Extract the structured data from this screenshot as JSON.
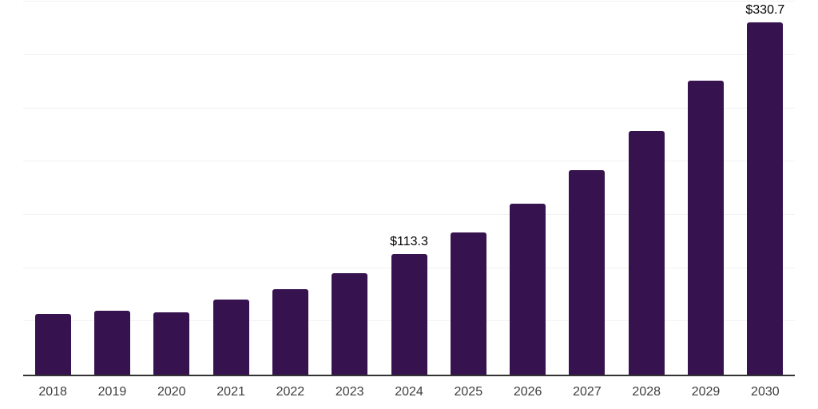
{
  "chart": {
    "background_color": "#ffffff",
    "bar_color": "#36124e",
    "gridline_color": "#f2f2f2",
    "axis_line_color": "#333333",
    "x_label_color": "#3d3d3d",
    "data_label_color": "#000000"
  },
  "chart_data": {
    "type": "bar",
    "title": "",
    "xlabel": "",
    "ylabel": "",
    "categories": [
      "2018",
      "2019",
      "2020",
      "2021",
      "2022",
      "2023",
      "2024",
      "2025",
      "2026",
      "2027",
      "2028",
      "2029",
      "2030"
    ],
    "values": [
      56.8,
      59.8,
      58.7,
      70.7,
      80.5,
      95.0,
      113.3,
      133.7,
      160.2,
      191.7,
      228.7,
      276.2,
      330.7
    ],
    "data_labels": [
      "",
      "",
      "",
      "",
      "",
      "",
      "$113.3",
      "",
      "",
      "",
      "",
      "",
      "$330.7"
    ],
    "ylim": [
      0,
      352
    ],
    "gridline_step": 50,
    "gridline_max": 350,
    "grid": "horizontal-only",
    "legend": "none",
    "y_axis_tick_labels": "none"
  }
}
